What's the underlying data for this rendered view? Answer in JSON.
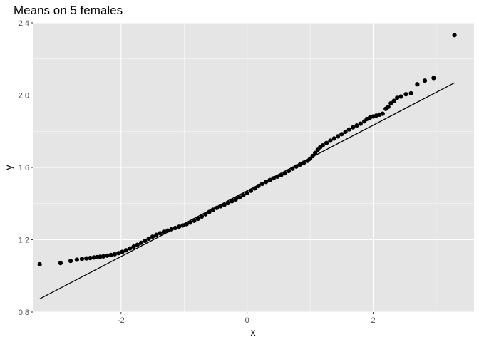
{
  "chart_data": {
    "type": "scatter",
    "title": "Means on 5 females",
    "xlabel": "x",
    "ylabel": "y",
    "xlim": [
      -3.4,
      3.6
    ],
    "ylim": [
      0.8,
      2.4
    ],
    "x_ticks": [
      -2,
      0,
      2
    ],
    "x_tick_labels": [
      "-2",
      "0",
      "2"
    ],
    "y_ticks": [
      0.8,
      1.2,
      1.6,
      2.0,
      2.4
    ],
    "y_tick_labels": [
      "0.8",
      "1.2",
      "1.6",
      "2.0",
      "2.4"
    ],
    "grid": true,
    "background": "#E5E5E5",
    "grid_major_color": "#FFFFFF",
    "point_color": "#000000",
    "line_color": "#000000",
    "reference_line": {
      "x": [
        -3.29,
        3.29
      ],
      "y": [
        0.873,
        2.068
      ]
    },
    "points": [
      [
        -3.29,
        1.064
      ],
      [
        -2.96,
        1.071
      ],
      [
        -2.8,
        1.083
      ],
      [
        -2.7,
        1.09
      ],
      [
        -2.62,
        1.094
      ],
      [
        -2.55,
        1.097
      ],
      [
        -2.49,
        1.099
      ],
      [
        -2.43,
        1.102
      ],
      [
        -2.38,
        1.104
      ],
      [
        -2.33,
        1.106
      ],
      [
        -2.28,
        1.108
      ],
      [
        -2.22,
        1.112
      ],
      [
        -2.16,
        1.116
      ],
      [
        -2.1,
        1.12
      ],
      [
        -2.04,
        1.126
      ],
      [
        -1.98,
        1.133
      ],
      [
        -1.92,
        1.142
      ],
      [
        -1.86,
        1.152
      ],
      [
        -1.8,
        1.162
      ],
      [
        -1.74,
        1.172
      ],
      [
        -1.68,
        1.183
      ],
      [
        -1.62,
        1.194
      ],
      [
        -1.56,
        1.206
      ],
      [
        -1.5,
        1.217
      ],
      [
        -1.44,
        1.227
      ],
      [
        -1.38,
        1.236
      ],
      [
        -1.32,
        1.244
      ],
      [
        -1.26,
        1.251
      ],
      [
        -1.2,
        1.258
      ],
      [
        -1.14,
        1.265
      ],
      [
        -1.08,
        1.272
      ],
      [
        -1.02,
        1.279
      ],
      [
        -0.96,
        1.286
      ],
      [
        -0.9,
        1.295
      ],
      [
        -0.84,
        1.305
      ],
      [
        -0.78,
        1.316
      ],
      [
        -0.72,
        1.328
      ],
      [
        -0.66,
        1.341
      ],
      [
        -0.6,
        1.354
      ],
      [
        -0.54,
        1.366
      ],
      [
        -0.48,
        1.376
      ],
      [
        -0.42,
        1.385
      ],
      [
        -0.36,
        1.394
      ],
      [
        -0.3,
        1.403
      ],
      [
        -0.24,
        1.413
      ],
      [
        -0.18,
        1.423
      ],
      [
        -0.12,
        1.434
      ],
      [
        -0.06,
        1.446
      ],
      [
        0.0,
        1.458
      ],
      [
        0.06,
        1.471
      ],
      [
        0.12,
        1.484
      ],
      [
        0.18,
        1.497
      ],
      [
        0.24,
        1.509
      ],
      [
        0.3,
        1.52
      ],
      [
        0.36,
        1.53
      ],
      [
        0.42,
        1.54
      ],
      [
        0.48,
        1.549
      ],
      [
        0.54,
        1.558
      ],
      [
        0.6,
        1.568
      ],
      [
        0.66,
        1.58
      ],
      [
        0.72,
        1.593
      ],
      [
        0.78,
        1.605
      ],
      [
        0.84,
        1.616
      ],
      [
        0.9,
        1.626
      ],
      [
        0.96,
        1.637
      ],
      [
        1.0,
        1.648
      ],
      [
        1.04,
        1.663
      ],
      [
        1.08,
        1.68
      ],
      [
        1.12,
        1.697
      ],
      [
        1.16,
        1.712
      ],
      [
        1.2,
        1.722
      ],
      [
        1.26,
        1.735
      ],
      [
        1.32,
        1.748
      ],
      [
        1.38,
        1.76
      ],
      [
        1.44,
        1.772
      ],
      [
        1.5,
        1.784
      ],
      [
        1.56,
        1.797
      ],
      [
        1.62,
        1.81
      ],
      [
        1.68,
        1.822
      ],
      [
        1.74,
        1.832
      ],
      [
        1.8,
        1.842
      ],
      [
        1.86,
        1.855
      ],
      [
        1.9,
        1.868
      ],
      [
        1.95,
        1.876
      ],
      [
        2.0,
        1.882
      ],
      [
        2.05,
        1.887
      ],
      [
        2.1,
        1.892
      ],
      [
        2.15,
        1.897
      ],
      [
        2.2,
        1.924
      ],
      [
        2.24,
        1.935
      ],
      [
        2.28,
        1.955
      ],
      [
        2.33,
        1.968
      ],
      [
        2.38,
        1.985
      ],
      [
        2.44,
        1.992
      ],
      [
        2.52,
        2.005
      ],
      [
        2.6,
        2.01
      ],
      [
        2.7,
        2.06
      ],
      [
        2.82,
        2.08
      ],
      [
        2.96,
        2.095
      ],
      [
        3.29,
        2.332
      ]
    ]
  }
}
